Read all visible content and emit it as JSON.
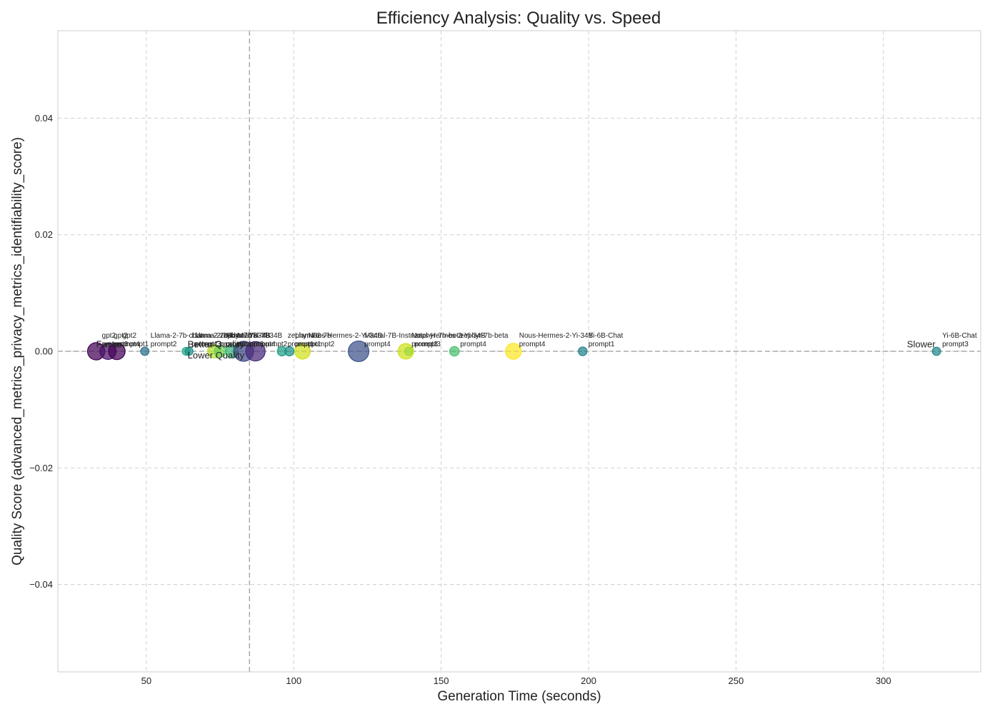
{
  "chart_data": {
    "type": "scatter",
    "title": "Efficiency Analysis: Quality vs. Speed",
    "xlabel": "Generation Time (seconds)",
    "ylabel": "Quality Score (advanced_metrics_privacy_metrics_identifiability_score)",
    "xlim": [
      20,
      333
    ],
    "ylim": [
      -0.055,
      0.055
    ],
    "xticks": [
      {
        "value": 50,
        "label": "50"
      },
      {
        "value": 100,
        "label": "100"
      },
      {
        "value": 150,
        "label": "150"
      },
      {
        "value": 200,
        "label": "200"
      },
      {
        "value": 250,
        "label": "250"
      },
      {
        "value": 300,
        "label": "300"
      }
    ],
    "yticks": [
      {
        "value": -0.04,
        "label": "−0.04"
      },
      {
        "value": -0.02,
        "label": "−0.02"
      },
      {
        "value": 0,
        "label": "0.00"
      },
      {
        "value": 0.02,
        "label": "0.02"
      },
      {
        "value": 0.04,
        "label": "0.04"
      }
    ],
    "grid": true,
    "reference_lines": {
      "x": 85,
      "y": 0
    },
    "annotations": [
      {
        "text": "Faster",
        "x": 33,
        "y": 0.0007
      },
      {
        "text": "Better Quality",
        "x": 64,
        "y": 0.0007
      },
      {
        "text": "Lower Quality",
        "x": 64,
        "y": -0.0012
      },
      {
        "text": "Slower",
        "x": 308,
        "y": 0.0007
      }
    ],
    "points": [
      {
        "label_top": "gpt2",
        "label_bottom": "prompt3",
        "x": 33,
        "y": 0,
        "size": 260,
        "color": "#440154"
      },
      {
        "label_top": "gpt2",
        "label_bottom": "prompt4",
        "x": 37,
        "y": 0,
        "size": 230,
        "color": "#481467"
      },
      {
        "label_top": "gpt2",
        "label_bottom": "prompt1",
        "x": 40,
        "y": 0,
        "size": 240,
        "color": "#440154"
      },
      {
        "label_top": "Llama-2-7b-chat",
        "label_bottom": "prompt2",
        "x": 49.5,
        "y": 0,
        "size": 60,
        "color": "#2c728e"
      },
      {
        "label_top": "Llama-2-7b-chat",
        "label_bottom": "prompt1",
        "x": 63.5,
        "y": 0,
        "size": 55,
        "color": "#28ae80"
      },
      {
        "label_top": "Llama-2-13b",
        "label_bottom": "prompt3",
        "x": 64.5,
        "y": 0,
        "size": 55,
        "color": "#21918c"
      },
      {
        "label_top": "zephyr-7b",
        "label_bottom": "prompt2",
        "x": 73,
        "y": 0,
        "size": 150,
        "color": "#b5de2b"
      },
      {
        "label_top": "Mistral-7B",
        "label_bottom": "prompt1",
        "x": 75,
        "y": 0,
        "size": 120,
        "color": "#6ece58"
      },
      {
        "label_top": "Mistral-7B",
        "label_bottom": "prompt3",
        "x": 79,
        "y": 0,
        "size": 140,
        "color": "#35b779"
      },
      {
        "label_top": "Yi-34B",
        "label_bottom": "prompt4",
        "x": 83,
        "y": 0,
        "size": 350,
        "color": "#3e4989"
      },
      {
        "label_top": "Yi-34B",
        "label_bottom": "prompt2",
        "x": 87,
        "y": 0,
        "size": 330,
        "color": "#482878"
      },
      {
        "label_top": "zephyr-7b",
        "label_bottom": "prompt1",
        "x": 96,
        "y": 0,
        "size": 75,
        "color": "#1fa187"
      },
      {
        "label_top": "Llama-2-7b",
        "label_bottom": "prompt1",
        "x": 98.5,
        "y": 0,
        "size": 75,
        "color": "#21918c"
      },
      {
        "label_top": "Nous-Hermes-2-Yi-34B",
        "label_bottom": "prompt2",
        "x": 103,
        "y": 0,
        "size": 210,
        "color": "#d0e11c"
      },
      {
        "label_top": "Mistral-7B-Instruct",
        "label_bottom": "prompt4",
        "x": 122,
        "y": 0,
        "size": 370,
        "color": "#3b528b"
      },
      {
        "label_top": "Nous-Hermes-2-Yi-34B",
        "label_bottom": "prompt3",
        "x": 138,
        "y": 0,
        "size": 210,
        "color": "#d0e11c"
      },
      {
        "label_top": "zephyr-7b-beta",
        "label_bottom": "prompt3",
        "x": 139,
        "y": 0,
        "size": 60,
        "color": "#a0da39"
      },
      {
        "label_top": "zephyr-7b-beta",
        "label_bottom": "prompt4",
        "x": 154.5,
        "y": 0,
        "size": 80,
        "color": "#4ac16d"
      },
      {
        "label_top": "Nous-Hermes-2-Yi-34B",
        "label_bottom": "prompt4",
        "x": 174.5,
        "y": 0,
        "size": 220,
        "color": "#fde725"
      },
      {
        "label_top": "Yi-6B-Chat",
        "label_bottom": "prompt1",
        "x": 198,
        "y": 0,
        "size": 65,
        "color": "#26828e"
      },
      {
        "label_top": "Yi-6B-Chat",
        "label_bottom": "prompt3",
        "x": 318,
        "y": 0,
        "size": 60,
        "color": "#23888e"
      }
    ]
  }
}
